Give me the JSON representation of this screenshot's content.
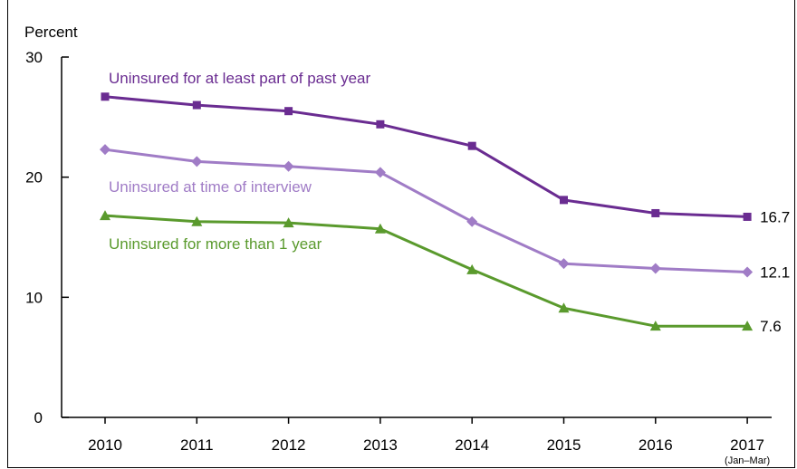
{
  "chart_data": {
    "type": "line",
    "ylabel": "Percent",
    "xlabel": "",
    "title": "",
    "ylim": [
      0,
      30
    ],
    "yticks": [
      0,
      10,
      20,
      30
    ],
    "categories": [
      "2010",
      "2011",
      "2012",
      "2013",
      "2014",
      "2015",
      "2016",
      "2017"
    ],
    "category_note": "(Jan–Mar)",
    "grid": false,
    "series": [
      {
        "name": "Uninsured for at least part of past year",
        "color": "#6a2c91",
        "marker": "square",
        "values": [
          26.7,
          26.0,
          25.5,
          24.4,
          22.6,
          18.1,
          17.0,
          16.7
        ],
        "end_label": "16.7"
      },
      {
        "name": "Uninsured at time of interview",
        "color": "#a07cc6",
        "marker": "diamond",
        "values": [
          22.3,
          21.3,
          20.9,
          20.4,
          16.3,
          12.8,
          12.4,
          12.1
        ],
        "end_label": "12.1"
      },
      {
        "name": "Uninsured for more than 1 year",
        "color": "#5a9a2d",
        "marker": "triangle",
        "values": [
          16.8,
          16.3,
          16.2,
          15.7,
          12.3,
          9.1,
          7.6,
          7.6
        ],
        "end_label": "7.6"
      }
    ]
  }
}
